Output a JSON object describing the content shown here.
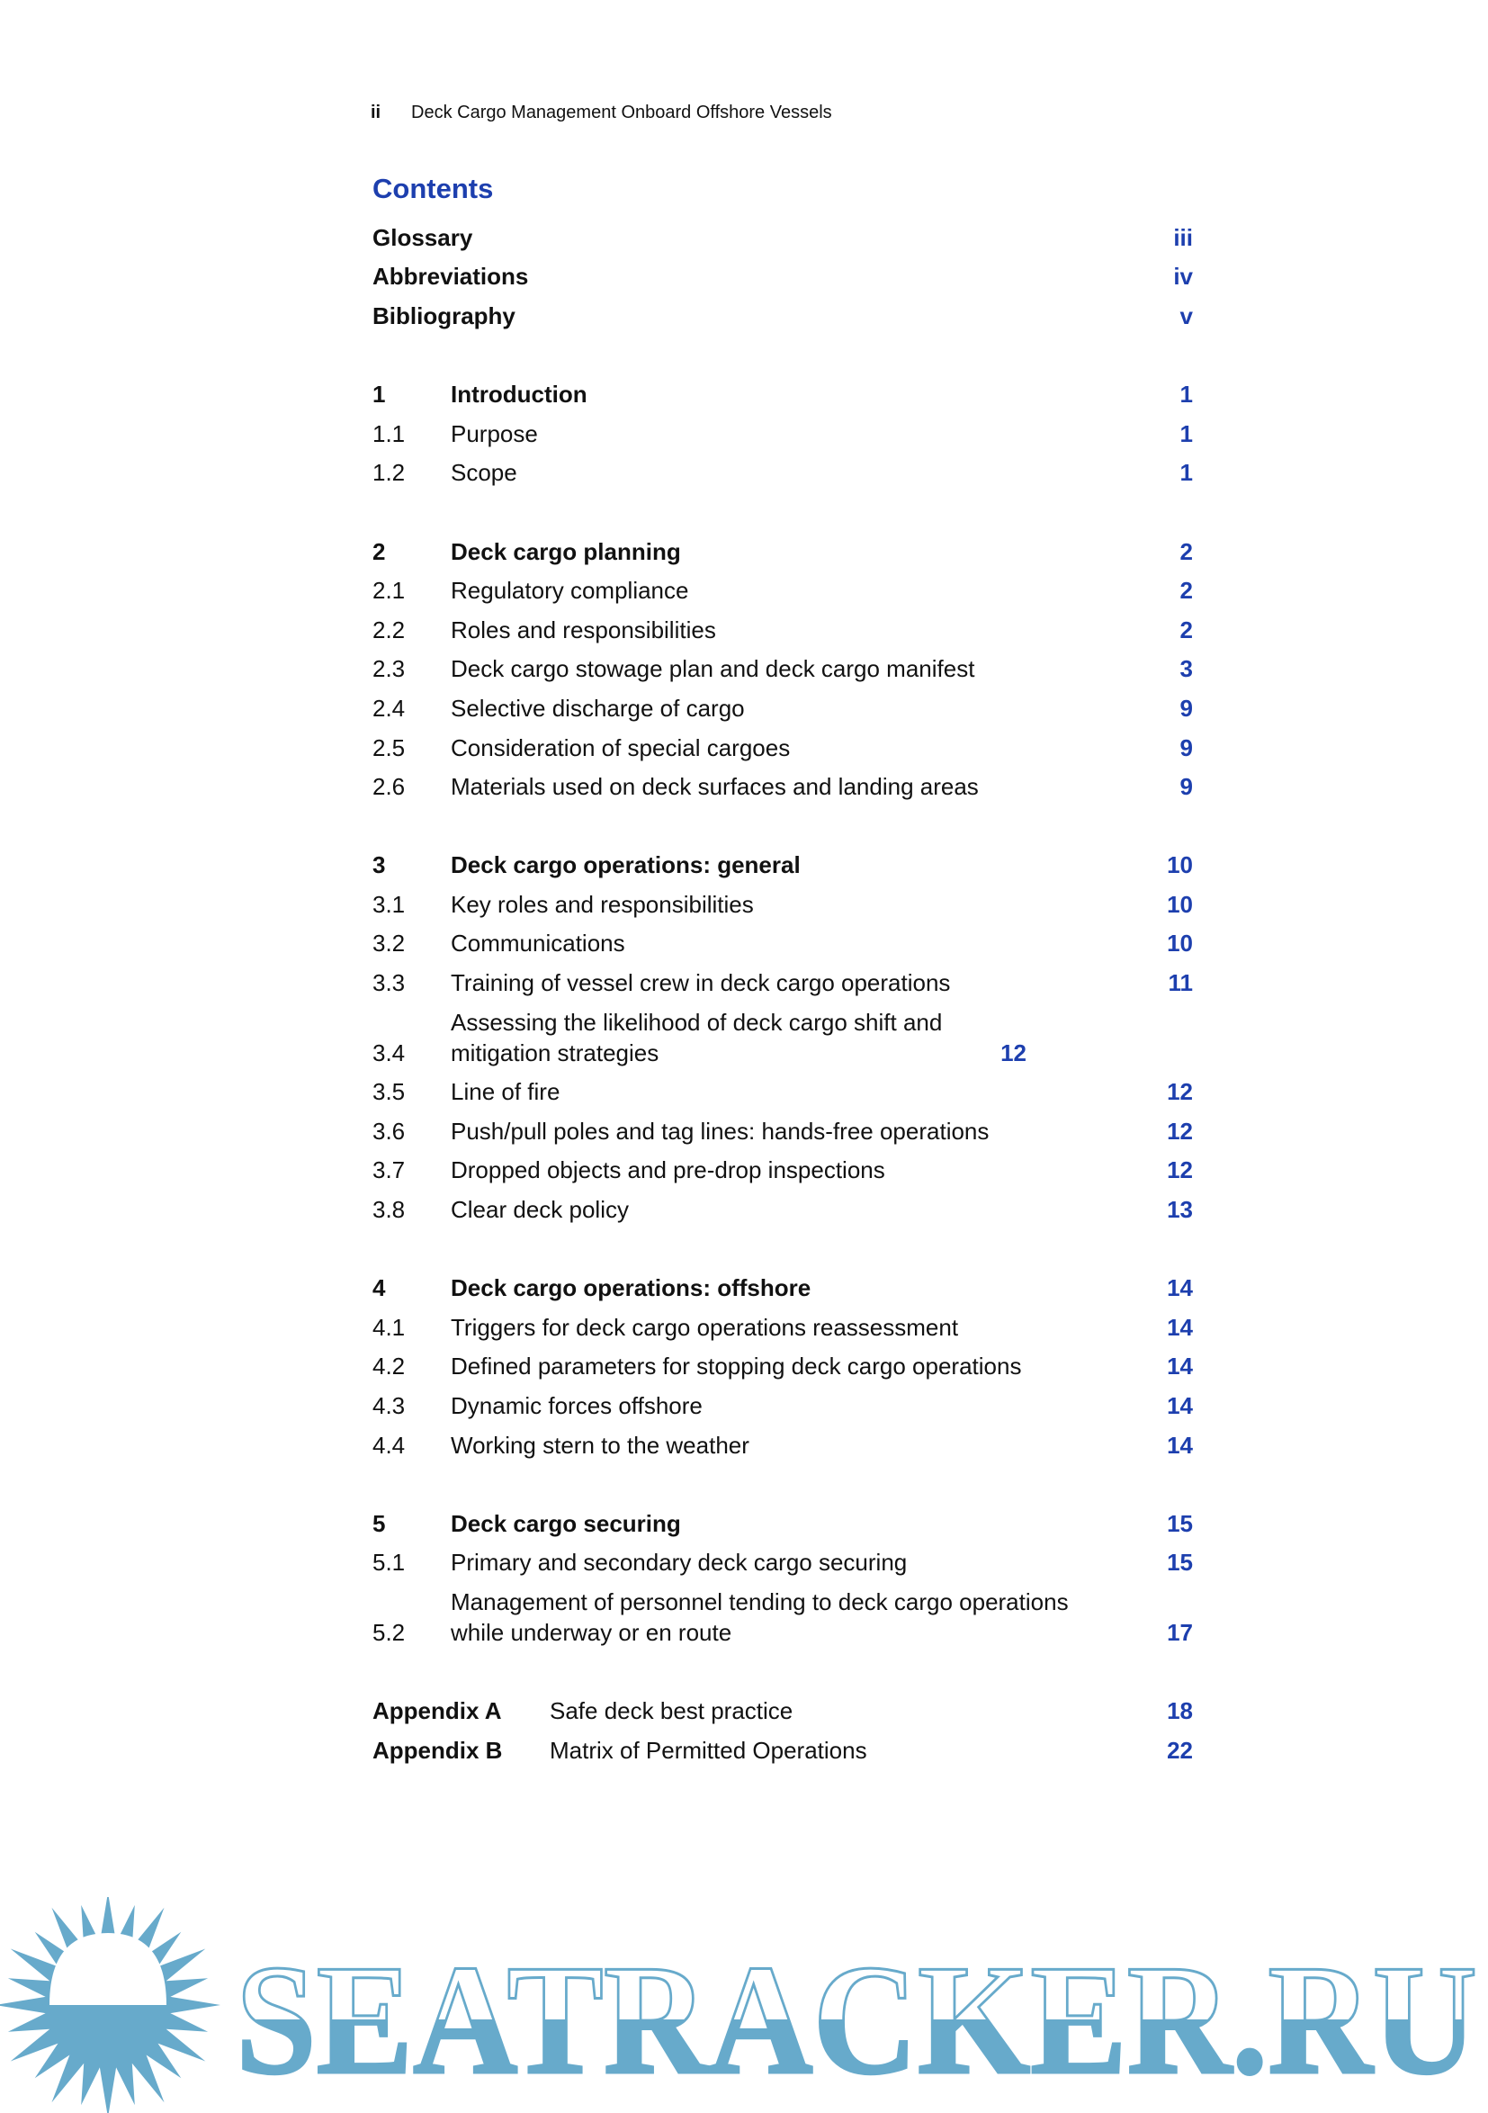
{
  "header": {
    "page_label": "ii",
    "running_title": "Deck Cargo Management Onboard Offshore Vessels"
  },
  "contents_title": "Contents",
  "front_matter": [
    {
      "title": "Glossary",
      "page": "iii"
    },
    {
      "title": "Abbreviations",
      "page": "iv"
    },
    {
      "title": "Bibliography",
      "page": "v"
    }
  ],
  "sections": [
    {
      "entries": [
        {
          "num": "1",
          "title": "Introduction",
          "page": "1",
          "chapter": true
        },
        {
          "num": "1.1",
          "title": "Purpose",
          "page": "1"
        },
        {
          "num": "1.2",
          "title": "Scope",
          "page": "1"
        }
      ]
    },
    {
      "entries": [
        {
          "num": "2",
          "title": "Deck cargo planning",
          "page": "2",
          "chapter": true
        },
        {
          "num": "2.1",
          "title": "Regulatory compliance",
          "page": "2"
        },
        {
          "num": "2.2",
          "title": "Roles and responsibilities",
          "page": "2"
        },
        {
          "num": "2.3",
          "title": "Deck cargo stowage plan and deck cargo manifest",
          "page": "3"
        },
        {
          "num": "2.4",
          "title": "Selective discharge of cargo",
          "page": "9"
        },
        {
          "num": "2.5",
          "title": "Consideration of special cargoes",
          "page": "9"
        },
        {
          "num": "2.6",
          "title": "Materials used on deck surfaces and landing areas",
          "page": "9"
        }
      ]
    },
    {
      "entries": [
        {
          "num": "3",
          "title": "Deck cargo operations: general",
          "page": "10",
          "chapter": true
        },
        {
          "num": "3.1",
          "title": "Key roles and responsibilities",
          "page": "10"
        },
        {
          "num": "3.2",
          "title": "Communications",
          "page": "10"
        },
        {
          "num": "3.3",
          "title": "Training of vessel crew in deck cargo operations",
          "page": "11"
        },
        {
          "num": "3.4",
          "title": "Assessing the likelihood of deck cargo shift and mitigation strategies",
          "page": "12",
          "wrap": true
        },
        {
          "num": "3.5",
          "title": "Line of fire",
          "page": "12"
        },
        {
          "num": "3.6",
          "title": "Push/pull poles and tag lines: hands-free operations",
          "page": "12"
        },
        {
          "num": "3.7",
          "title": "Dropped objects and pre-drop inspections",
          "page": "12"
        },
        {
          "num": "3.8",
          "title": "Clear deck policy",
          "page": "13"
        }
      ]
    },
    {
      "entries": [
        {
          "num": "4",
          "title": "Deck cargo operations: offshore",
          "page": "14",
          "chapter": true
        },
        {
          "num": "4.1",
          "title": "Triggers for deck cargo operations reassessment",
          "page": "14"
        },
        {
          "num": "4.2",
          "title": "Defined parameters for stopping deck cargo operations",
          "page": "14"
        },
        {
          "num": "4.3",
          "title": "Dynamic forces offshore",
          "page": "14"
        },
        {
          "num": "4.4",
          "title": "Working stern to the weather",
          "page": "14"
        }
      ]
    },
    {
      "entries": [
        {
          "num": "5",
          "title": "Deck cargo securing",
          "page": "15",
          "chapter": true
        },
        {
          "num": "5.1",
          "title": "Primary and secondary deck cargo securing",
          "page": "15"
        },
        {
          "num": "5.2",
          "title": "Management of personnel tending to deck cargo operations while underway or en route",
          "page": "17"
        }
      ]
    }
  ],
  "appendices": [
    {
      "num": "Appendix A",
      "title": "Safe deck best practice",
      "page": "18"
    },
    {
      "num": "Appendix B",
      "title": "Matrix of Permitted Operations",
      "page": "22"
    }
  ],
  "watermark": {
    "text": "SEATRACKER.RU",
    "color": "#67aacb"
  },
  "colors": {
    "accent": "#1d3fae"
  }
}
